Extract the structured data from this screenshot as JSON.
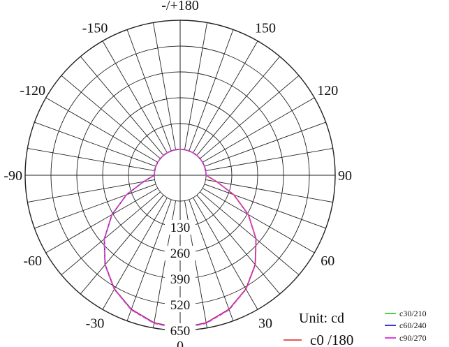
{
  "chart_data": {
    "type": "polar",
    "angle_labels": [
      "-/+180",
      "-150",
      "150",
      "-120",
      "120",
      "-90",
      "90",
      "-60",
      "60",
      "-30",
      "30",
      "0"
    ],
    "angle_values": [
      180,
      -150,
      150,
      -120,
      120,
      -90,
      90,
      -60,
      60,
      -30,
      30,
      0
    ],
    "radial_labels": [
      "130",
      "260",
      "390",
      "520",
      "650"
    ],
    "radial_values": [
      130,
      260,
      390,
      520,
      650
    ],
    "rmax": 650,
    "grid": true,
    "unit_label": "Unit: cd",
    "legend_placement": "bottom-right",
    "series": [
      {
        "name": "c0 /180",
        "color": "#e0201c",
        "angles": [
          0,
          10,
          20,
          30,
          40,
          50,
          60,
          70,
          80,
          90
        ],
        "values": [
          640,
          624,
          588,
          531,
          457,
          368,
          266,
          157,
          57,
          0
        ]
      },
      {
        "name": "c30/210",
        "color": "#4bd44b",
        "angles": [
          0,
          10,
          20,
          30,
          40,
          50,
          60,
          70,
          80,
          90
        ],
        "values": [
          642,
          626,
          590,
          532,
          458,
          369,
          267,
          158,
          58,
          0
        ]
      },
      {
        "name": "c60/240",
        "color": "#3b3bd6",
        "angles": [
          0,
          10,
          20,
          30,
          40,
          50,
          60,
          70,
          80,
          90
        ],
        "values": [
          641,
          625,
          589,
          532,
          458,
          368,
          266,
          157,
          57,
          0
        ]
      },
      {
        "name": "c90/270",
        "color": "#e040e0",
        "angles": [
          0,
          10,
          20,
          30,
          40,
          50,
          60,
          70,
          80,
          90
        ],
        "values": [
          643,
          627,
          591,
          533,
          459,
          369,
          267,
          158,
          58,
          0
        ]
      }
    ]
  }
}
